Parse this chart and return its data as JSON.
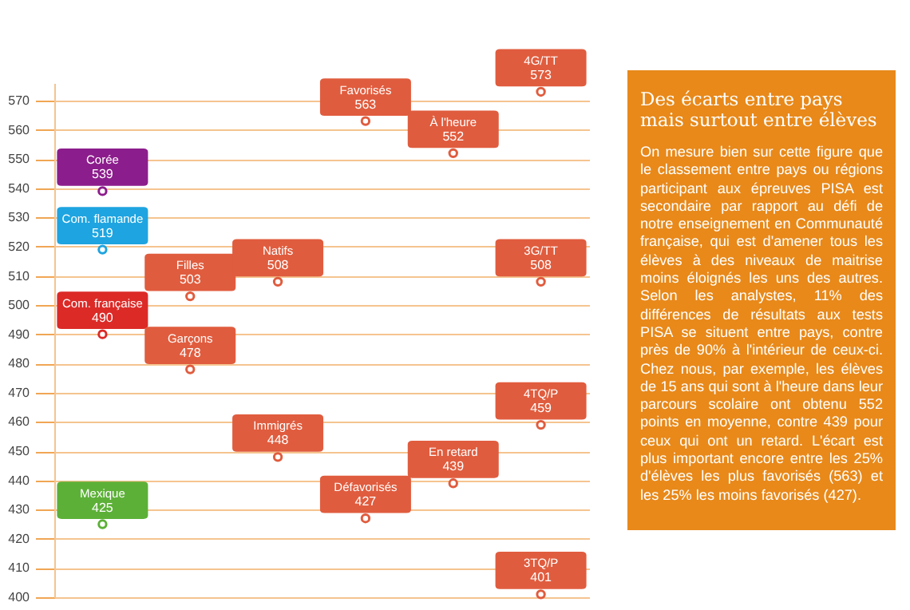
{
  "chart_data": [
    {
      "type": "scatter",
      "categories": [
        null,
        null,
        null,
        null,
        null,
        null
      ],
      "ylim": [
        400,
        576
      ],
      "yticks": [
        400,
        410,
        420,
        430,
        440,
        450,
        460,
        470,
        480,
        490,
        500,
        510,
        520,
        530,
        540,
        550,
        560,
        570
      ],
      "grid": "y",
      "marker": "circle",
      "data_labels": true,
      "series": [
        {
          "name": "Corée",
          "color": "#8c1d8c",
          "values": [
            539,
            null,
            null,
            null,
            null,
            null
          ]
        },
        {
          "name": "Com. flamande",
          "color": "#1ea4e0",
          "values": [
            519,
            null,
            null,
            null,
            null,
            null
          ]
        },
        {
          "name": "Com. française",
          "color": "#dc2a27",
          "values": [
            490,
            null,
            null,
            null,
            null,
            null
          ]
        },
        {
          "name": "Mexique",
          "color": "#5cb037",
          "values": [
            425,
            null,
            null,
            null,
            null,
            null
          ]
        },
        {
          "name": "Filles",
          "color": "#e05c3e",
          "values": [
            null,
            503,
            null,
            null,
            null,
            null
          ]
        },
        {
          "name": "Garçons",
          "color": "#e05c3e",
          "values": [
            null,
            478,
            null,
            null,
            null,
            null
          ]
        },
        {
          "name": "Natifs",
          "color": "#e05c3e",
          "values": [
            null,
            null,
            508,
            null,
            null,
            null
          ]
        },
        {
          "name": "Immigrés",
          "color": "#e05c3e",
          "values": [
            null,
            null,
            448,
            null,
            null,
            null
          ]
        },
        {
          "name": "Favorisés",
          "color": "#e05c3e",
          "values": [
            null,
            null,
            null,
            563,
            null,
            null
          ]
        },
        {
          "name": "Défavorisés",
          "color": "#e05c3e",
          "values": [
            null,
            null,
            null,
            427,
            null,
            null
          ]
        },
        {
          "name": "À l'heure",
          "color": "#e05c3e",
          "values": [
            null,
            null,
            null,
            null,
            552,
            null
          ]
        },
        {
          "name": "En retard",
          "color": "#e05c3e",
          "values": [
            null,
            null,
            null,
            null,
            439,
            null
          ]
        },
        {
          "name": "4G/TT",
          "color": "#e05c3e",
          "values": [
            null,
            null,
            null,
            null,
            null,
            573
          ]
        },
        {
          "name": "3G/TT",
          "color": "#e05c3e",
          "values": [
            null,
            null,
            null,
            null,
            null,
            508
          ]
        },
        {
          "name": "4TQ/P",
          "color": "#e05c3e",
          "values": [
            null,
            null,
            null,
            null,
            null,
            459
          ]
        },
        {
          "name": "3TQ/P",
          "color": "#e05c3e",
          "values": [
            null,
            null,
            null,
            null,
            null,
            401
          ]
        }
      ]
    },
    {
      "type": "other",
      "title": "Des écarts entre pays mais surtout entre élèves",
      "annotations": [
        "On mesure bien sur cette figure que le classement entre pays ou régions participant aux épreuves PISA est secondaire par rapport au défi de notre enseignement en Communauté française, qui est d'amener tous les élèves à des niveaux de maitrise moins éloignés les uns des autres. Selon les analystes, 11% des différences de résultats aux tests PISA se situent entre pays, contre près de 90% à l'intérieur de ceux-ci. Chez nous, par exemple, les élèves de 15 ans qui sont à l'heure dans leur parcours scolaire ont obtenu 552 points en moyenne, contre 439 pour ceux qui ont un retard. L'écart est plus important encore entre les 25% d'élèves les plus favorisés (563) et les 25% les moins favorisés (427)."
      ]
    }
  ]
}
